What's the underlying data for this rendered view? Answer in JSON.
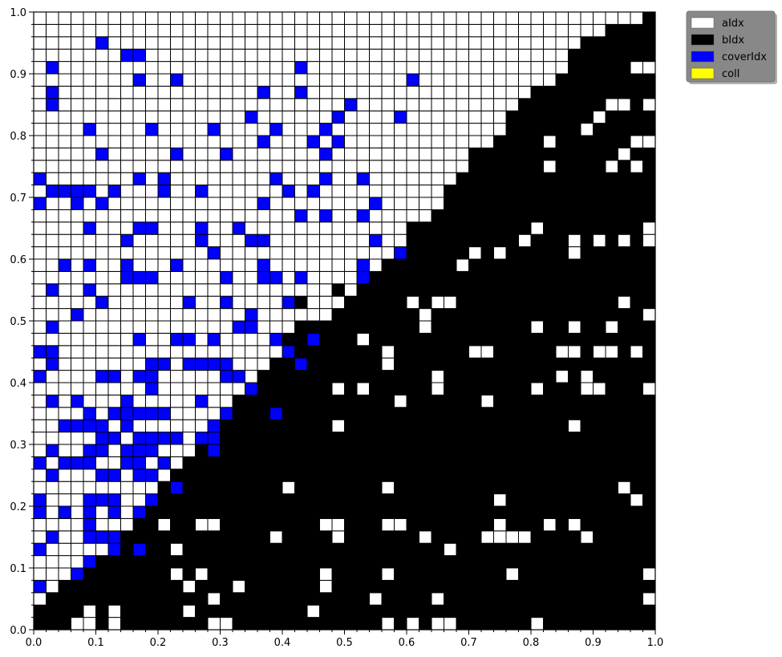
{
  "chart_data": {
    "type": "heatmap",
    "title": "",
    "xlabel": "",
    "ylabel": "",
    "xlim": [
      0,
      1
    ],
    "ylim": [
      0,
      1
    ],
    "grid_cells": 50,
    "x_ticks": [
      "0.0",
      "0.1",
      "0.2",
      "0.3",
      "0.4",
      "0.5",
      "0.6",
      "0.7",
      "0.8",
      "0.9",
      "1.0"
    ],
    "y_ticks": [
      "0.0",
      "0.1",
      "0.2",
      "0.3",
      "0.4",
      "0.5",
      "0.6",
      "0.7",
      "0.8",
      "0.9",
      "1.0"
    ],
    "legend_position": "outside top-right",
    "categories": [
      {
        "name": "aIdx",
        "color": "#ffffff"
      },
      {
        "name": "bIdx",
        "color": "#000000"
      },
      {
        "name": "coverIdx",
        "color": "#0000ff"
      },
      {
        "name": "coll",
        "color": "#ffff00"
      }
    ],
    "boundary_note": "white above boundary, black below",
    "boundary": [
      [
        0,
        0.04
      ],
      [
        0.1,
        0.11
      ],
      [
        0.2,
        0.22
      ],
      [
        0.3,
        0.34
      ],
      [
        0.4,
        0.46
      ],
      [
        0.5,
        0.53
      ],
      [
        0.6,
        0.62
      ],
      [
        0.7,
        0.74
      ],
      [
        0.8,
        0.86
      ],
      [
        0.9,
        0.96
      ],
      [
        1,
        1.0
      ]
    ],
    "cover_cells": [
      [
        0.03,
        0.91
      ],
      [
        0.03,
        0.87
      ],
      [
        0.03,
        0.85
      ],
      [
        0.11,
        0.95
      ],
      [
        0.15,
        0.93
      ],
      [
        0.17,
        0.93
      ],
      [
        0.17,
        0.89
      ],
      [
        0.23,
        0.89
      ],
      [
        0.43,
        0.91
      ],
      [
        0.37,
        0.87
      ],
      [
        0.43,
        0.87
      ],
      [
        0.61,
        0.89
      ],
      [
        0.51,
        0.85
      ],
      [
        0.49,
        0.83
      ],
      [
        0.59,
        0.83
      ],
      [
        0.35,
        0.83
      ],
      [
        0.09,
        0.81
      ],
      [
        0.19,
        0.81
      ],
      [
        0.29,
        0.81
      ],
      [
        0.39,
        0.81
      ],
      [
        0.47,
        0.81
      ],
      [
        0.37,
        0.79
      ],
      [
        0.45,
        0.79
      ],
      [
        0.49,
        0.79
      ],
      [
        0.11,
        0.77
      ],
      [
        0.23,
        0.77
      ],
      [
        0.31,
        0.77
      ],
      [
        0.47,
        0.77
      ],
      [
        0.01,
        0.73
      ],
      [
        0.17,
        0.73
      ],
      [
        0.21,
        0.73
      ],
      [
        0.39,
        0.73
      ],
      [
        0.47,
        0.73
      ],
      [
        0.53,
        0.73
      ],
      [
        0.03,
        0.71
      ],
      [
        0.05,
        0.71
      ],
      [
        0.07,
        0.71
      ],
      [
        0.09,
        0.71
      ],
      [
        0.13,
        0.71
      ],
      [
        0.21,
        0.71
      ],
      [
        0.27,
        0.71
      ],
      [
        0.41,
        0.71
      ],
      [
        0.45,
        0.71
      ],
      [
        0.01,
        0.69
      ],
      [
        0.07,
        0.69
      ],
      [
        0.11,
        0.69
      ],
      [
        0.37,
        0.69
      ],
      [
        0.55,
        0.69
      ],
      [
        0.43,
        0.67
      ],
      [
        0.47,
        0.67
      ],
      [
        0.53,
        0.67
      ],
      [
        0.09,
        0.65
      ],
      [
        0.17,
        0.65
      ],
      [
        0.19,
        0.65
      ],
      [
        0.27,
        0.65
      ],
      [
        0.33,
        0.65
      ],
      [
        0.15,
        0.63
      ],
      [
        0.27,
        0.63
      ],
      [
        0.35,
        0.63
      ],
      [
        0.37,
        0.63
      ],
      [
        0.55,
        0.63
      ],
      [
        0.29,
        0.61
      ],
      [
        0.59,
        0.61
      ],
      [
        0.05,
        0.59
      ],
      [
        0.09,
        0.59
      ],
      [
        0.15,
        0.59
      ],
      [
        0.23,
        0.59
      ],
      [
        0.37,
        0.59
      ],
      [
        0.53,
        0.59
      ],
      [
        0.15,
        0.57
      ],
      [
        0.17,
        0.57
      ],
      [
        0.19,
        0.57
      ],
      [
        0.31,
        0.57
      ],
      [
        0.37,
        0.57
      ],
      [
        0.39,
        0.57
      ],
      [
        0.43,
        0.57
      ],
      [
        0.53,
        0.57
      ],
      [
        0.03,
        0.55
      ],
      [
        0.09,
        0.55
      ],
      [
        0.11,
        0.53
      ],
      [
        0.25,
        0.53
      ],
      [
        0.31,
        0.53
      ],
      [
        0.41,
        0.53
      ],
      [
        0.07,
        0.51
      ],
      [
        0.35,
        0.51
      ],
      [
        0.03,
        0.49
      ],
      [
        0.33,
        0.49
      ],
      [
        0.35,
        0.49
      ],
      [
        0.17,
        0.47
      ],
      [
        0.23,
        0.47
      ],
      [
        0.25,
        0.47
      ],
      [
        0.29,
        0.47
      ],
      [
        0.39,
        0.47
      ],
      [
        0.45,
        0.47
      ],
      [
        0.01,
        0.45
      ],
      [
        0.03,
        0.45
      ],
      [
        0.41,
        0.45
      ],
      [
        0.03,
        0.43
      ],
      [
        0.19,
        0.43
      ],
      [
        0.21,
        0.43
      ],
      [
        0.25,
        0.43
      ],
      [
        0.27,
        0.43
      ],
      [
        0.29,
        0.43
      ],
      [
        0.31,
        0.43
      ],
      [
        0.43,
        0.43
      ],
      [
        0.01,
        0.41
      ],
      [
        0.11,
        0.41
      ],
      [
        0.13,
        0.41
      ],
      [
        0.17,
        0.41
      ],
      [
        0.19,
        0.41
      ],
      [
        0.31,
        0.41
      ],
      [
        0.33,
        0.41
      ],
      [
        0.19,
        0.39
      ],
      [
        0.35,
        0.39
      ],
      [
        0.03,
        0.37
      ],
      [
        0.07,
        0.37
      ],
      [
        0.15,
        0.37
      ],
      [
        0.27,
        0.37
      ],
      [
        0.09,
        0.35
      ],
      [
        0.13,
        0.35
      ],
      [
        0.15,
        0.35
      ],
      [
        0.17,
        0.35
      ],
      [
        0.19,
        0.35
      ],
      [
        0.21,
        0.35
      ],
      [
        0.31,
        0.35
      ],
      [
        0.39,
        0.35
      ],
      [
        0.05,
        0.33
      ],
      [
        0.07,
        0.33
      ],
      [
        0.09,
        0.33
      ],
      [
        0.11,
        0.33
      ],
      [
        0.15,
        0.33
      ],
      [
        0.29,
        0.33
      ],
      [
        0.11,
        0.31
      ],
      [
        0.13,
        0.31
      ],
      [
        0.17,
        0.31
      ],
      [
        0.19,
        0.31
      ],
      [
        0.21,
        0.31
      ],
      [
        0.23,
        0.31
      ],
      [
        0.27,
        0.31
      ],
      [
        0.29,
        0.31
      ],
      [
        0.03,
        0.29
      ],
      [
        0.09,
        0.29
      ],
      [
        0.11,
        0.29
      ],
      [
        0.15,
        0.29
      ],
      [
        0.17,
        0.29
      ],
      [
        0.19,
        0.29
      ],
      [
        0.29,
        0.29
      ],
      [
        0.01,
        0.27
      ],
      [
        0.05,
        0.27
      ],
      [
        0.07,
        0.27
      ],
      [
        0.09,
        0.27
      ],
      [
        0.15,
        0.27
      ],
      [
        0.17,
        0.27
      ],
      [
        0.21,
        0.27
      ],
      [
        0.03,
        0.25
      ],
      [
        0.11,
        0.25
      ],
      [
        0.13,
        0.25
      ],
      [
        0.17,
        0.25
      ],
      [
        0.19,
        0.25
      ],
      [
        0.23,
        0.23
      ],
      [
        0.01,
        0.21
      ],
      [
        0.09,
        0.21
      ],
      [
        0.11,
        0.21
      ],
      [
        0.13,
        0.21
      ],
      [
        0.19,
        0.21
      ],
      [
        0.01,
        0.19
      ],
      [
        0.05,
        0.19
      ],
      [
        0.09,
        0.19
      ],
      [
        0.13,
        0.19
      ],
      [
        0.17,
        0.19
      ],
      [
        0.09,
        0.17
      ],
      [
        0.03,
        0.15
      ],
      [
        0.09,
        0.15
      ],
      [
        0.11,
        0.15
      ],
      [
        0.13,
        0.15
      ],
      [
        0.01,
        0.13
      ],
      [
        0.13,
        0.13
      ],
      [
        0.17,
        0.13
      ],
      [
        0.09,
        0.11
      ],
      [
        0.07,
        0.09
      ],
      [
        0.01,
        0.07
      ]
    ],
    "black_islands": [
      [
        0.99,
        0.99
      ],
      [
        0.97,
        0.97
      ],
      [
        0.95,
        0.95
      ],
      [
        0.87,
        0.93
      ],
      [
        0.93,
        0.93
      ],
      [
        0.91,
        0.91
      ],
      [
        0.89,
        0.89
      ],
      [
        0.81,
        0.87
      ],
      [
        0.79,
        0.85
      ],
      [
        0.83,
        0.85
      ],
      [
        0.77,
        0.83
      ],
      [
        0.81,
        0.83
      ],
      [
        0.79,
        0.81
      ],
      [
        0.71,
        0.77
      ],
      [
        0.69,
        0.73
      ],
      [
        0.67,
        0.71
      ],
      [
        0.61,
        0.65
      ],
      [
        0.63,
        0.65
      ],
      [
        0.65,
        0.65
      ],
      [
        0.49,
        0.55
      ],
      [
        0.43,
        0.53
      ],
      [
        0.51,
        0.53
      ],
      [
        0.49,
        0.51
      ],
      [
        0.43,
        0.49
      ],
      [
        0.41,
        0.47
      ],
      [
        0.41,
        0.45
      ],
      [
        0.37,
        0.41
      ],
      [
        0.35,
        0.39
      ],
      [
        0.33,
        0.37
      ],
      [
        0.31,
        0.35
      ]
    ],
    "white_islands": [
      [
        0.99,
        0.91
      ],
      [
        0.97,
        0.91
      ],
      [
        0.99,
        0.85
      ],
      [
        0.95,
        0.85
      ],
      [
        0.93,
        0.85
      ],
      [
        0.91,
        0.83
      ],
      [
        0.89,
        0.81
      ],
      [
        0.83,
        0.79
      ],
      [
        0.97,
        0.79
      ],
      [
        0.99,
        0.79
      ],
      [
        0.95,
        0.77
      ],
      [
        0.93,
        0.75
      ],
      [
        0.97,
        0.75
      ],
      [
        0.83,
        0.75
      ],
      [
        0.99,
        0.65
      ],
      [
        0.81,
        0.65
      ],
      [
        0.79,
        0.63
      ],
      [
        0.87,
        0.63
      ],
      [
        0.91,
        0.63
      ],
      [
        0.95,
        0.63
      ],
      [
        0.99,
        0.63
      ],
      [
        0.71,
        0.61
      ],
      [
        0.75,
        0.61
      ],
      [
        0.87,
        0.61
      ],
      [
        0.69,
        0.59
      ],
      [
        0.65,
        0.53
      ],
      [
        0.61,
        0.53
      ],
      [
        0.67,
        0.53
      ],
      [
        0.95,
        0.53
      ],
      [
        0.63,
        0.51
      ],
      [
        0.99,
        0.51
      ],
      [
        0.63,
        0.49
      ],
      [
        0.81,
        0.49
      ],
      [
        0.87,
        0.49
      ],
      [
        0.93,
        0.49
      ],
      [
        0.53,
        0.47
      ],
      [
        0.57,
        0.45
      ],
      [
        0.71,
        0.45
      ],
      [
        0.73,
        0.45
      ],
      [
        0.85,
        0.45
      ],
      [
        0.87,
        0.45
      ],
      [
        0.91,
        0.45
      ],
      [
        0.93,
        0.45
      ],
      [
        0.97,
        0.45
      ],
      [
        0.57,
        0.43
      ],
      [
        0.65,
        0.41
      ],
      [
        0.85,
        0.41
      ],
      [
        0.89,
        0.41
      ],
      [
        0.49,
        0.39
      ],
      [
        0.53,
        0.39
      ],
      [
        0.65,
        0.39
      ],
      [
        0.81,
        0.39
      ],
      [
        0.89,
        0.39
      ],
      [
        0.91,
        0.39
      ],
      [
        0.99,
        0.39
      ],
      [
        0.59,
        0.37
      ],
      [
        0.73,
        0.37
      ],
      [
        0.49,
        0.33
      ],
      [
        0.87,
        0.33
      ],
      [
        0.41,
        0.23
      ],
      [
        0.57,
        0.23
      ],
      [
        0.95,
        0.23
      ],
      [
        0.97,
        0.21
      ],
      [
        0.75,
        0.21
      ],
      [
        0.21,
        0.17
      ],
      [
        0.27,
        0.17
      ],
      [
        0.29,
        0.17
      ],
      [
        0.47,
        0.17
      ],
      [
        0.49,
        0.17
      ],
      [
        0.57,
        0.17
      ],
      [
        0.59,
        0.17
      ],
      [
        0.83,
        0.17
      ],
      [
        0.87,
        0.17
      ],
      [
        0.75,
        0.17
      ],
      [
        0.39,
        0.15
      ],
      [
        0.49,
        0.15
      ],
      [
        0.63,
        0.15
      ],
      [
        0.73,
        0.15
      ],
      [
        0.75,
        0.15
      ],
      [
        0.77,
        0.15
      ],
      [
        0.79,
        0.15
      ],
      [
        0.89,
        0.15
      ],
      [
        0.23,
        0.13
      ],
      [
        0.67,
        0.13
      ],
      [
        0.23,
        0.09
      ],
      [
        0.27,
        0.09
      ],
      [
        0.47,
        0.09
      ],
      [
        0.57,
        0.09
      ],
      [
        0.77,
        0.09
      ],
      [
        0.99,
        0.09
      ],
      [
        0.25,
        0.07
      ],
      [
        0.33,
        0.07
      ],
      [
        0.47,
        0.07
      ],
      [
        0.29,
        0.05
      ],
      [
        0.55,
        0.05
      ],
      [
        0.65,
        0.05
      ],
      [
        0.99,
        0.05
      ],
      [
        0.25,
        0.03
      ],
      [
        0.45,
        0.03
      ],
      [
        0.09,
        0.03
      ],
      [
        0.13,
        0.03
      ],
      [
        0.07,
        0.01
      ],
      [
        0.09,
        0.01
      ],
      [
        0.13,
        0.01
      ],
      [
        0.29,
        0.01
      ],
      [
        0.31,
        0.01
      ],
      [
        0.57,
        0.01
      ],
      [
        0.61,
        0.01
      ],
      [
        0.65,
        0.01
      ],
      [
        0.67,
        0.01
      ],
      [
        0.81,
        0.01
      ]
    ]
  }
}
